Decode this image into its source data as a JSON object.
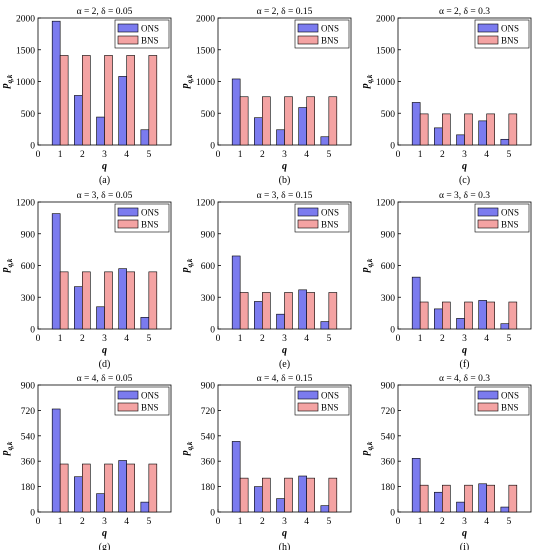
{
  "colors": {
    "ons": "#7b7bef",
    "bns": "#f4a3a3",
    "edge": "#000000"
  },
  "charts": [
    {
      "title": "α = 2, δ = 0.05",
      "ylabel": "p",
      "ylabel_sub": "q,k",
      "xlabel": "q",
      "caption": "(a)",
      "ylim": [
        0,
        2000
      ],
      "yticks": [
        "0",
        "500",
        "1000",
        "1500",
        "2000"
      ],
      "yticks_values": [
        0,
        500,
        1000,
        1500,
        2000
      ],
      "xlim": [
        0,
        6
      ],
      "xticks": [
        "0",
        "1",
        "2",
        "3",
        "4",
        "5"
      ],
      "legend": [
        "ONS",
        "BNS"
      ],
      "categories": [
        1,
        2,
        3,
        4,
        5
      ],
      "series": [
        {
          "name": "ONS",
          "values": [
            1950,
            780,
            440,
            1080,
            240
          ]
        },
        {
          "name": "BNS",
          "values": [
            1410,
            1410,
            1410,
            1410,
            1410
          ]
        }
      ]
    },
    {
      "title": "α = 2, δ = 0.15",
      "ylabel": "p",
      "ylabel_sub": "q,k",
      "xlabel": "q",
      "caption": "(b)",
      "ylim": [
        0,
        2000
      ],
      "yticks": [
        "0",
        "500",
        "1000",
        "1500",
        "2000"
      ],
      "yticks_values": [
        0,
        500,
        1000,
        1500,
        2000
      ],
      "xlim": [
        0,
        6
      ],
      "xticks": [
        "0",
        "1",
        "2",
        "3",
        "4",
        "5"
      ],
      "legend": [
        "ONS",
        "BNS"
      ],
      "categories": [
        1,
        2,
        3,
        4,
        5
      ],
      "series": [
        {
          "name": "ONS",
          "values": [
            1040,
            430,
            240,
            590,
            130
          ]
        },
        {
          "name": "BNS",
          "values": [
            760,
            760,
            760,
            760,
            760
          ]
        }
      ]
    },
    {
      "title": "α = 2, δ = 0.3",
      "ylabel": "p",
      "ylabel_sub": "q,k",
      "xlabel": "q",
      "caption": "(c)",
      "ylim": [
        0,
        2000
      ],
      "yticks": [
        "0",
        "500",
        "1000",
        "1500",
        "2000"
      ],
      "yticks_values": [
        0,
        500,
        1000,
        1500,
        2000
      ],
      "xlim": [
        0,
        6
      ],
      "xticks": [
        "0",
        "1",
        "2",
        "3",
        "4",
        "5"
      ],
      "legend": [
        "ONS",
        "BNS"
      ],
      "categories": [
        1,
        2,
        3,
        4,
        5
      ],
      "series": [
        {
          "name": "ONS",
          "values": [
            670,
            270,
            160,
            380,
            90
          ]
        },
        {
          "name": "BNS",
          "values": [
            490,
            490,
            490,
            490,
            490
          ]
        }
      ]
    },
    {
      "title": "α = 3, δ = 0.05",
      "ylabel": "p",
      "ylabel_sub": "q,k",
      "xlabel": "q",
      "caption": "(d)",
      "ylim": [
        0,
        1200
      ],
      "yticks": [
        "0",
        "300",
        "600",
        "900",
        "1200"
      ],
      "yticks_values": [
        0,
        300,
        600,
        900,
        1200
      ],
      "xlim": [
        0,
        6
      ],
      "xticks": [
        "0",
        "1",
        "2",
        "3",
        "4",
        "5"
      ],
      "legend": [
        "ONS",
        "BNS"
      ],
      "categories": [
        1,
        2,
        3,
        4,
        5
      ],
      "series": [
        {
          "name": "ONS",
          "values": [
            1090,
            400,
            210,
            570,
            110
          ]
        },
        {
          "name": "BNS",
          "values": [
            540,
            540,
            540,
            540,
            540
          ]
        }
      ]
    },
    {
      "title": "α = 3, δ = 0.15",
      "ylabel": "p",
      "ylabel_sub": "q,k",
      "xlabel": "q",
      "caption": "(e)",
      "ylim": [
        0,
        1200
      ],
      "yticks": [
        "0",
        "300",
        "600",
        "900",
        "1200"
      ],
      "yticks_values": [
        0,
        300,
        600,
        900,
        1200
      ],
      "xlim": [
        0,
        6
      ],
      "xticks": [
        "0",
        "1",
        "2",
        "3",
        "4",
        "5"
      ],
      "legend": [
        "ONS",
        "BNS"
      ],
      "categories": [
        1,
        2,
        3,
        4,
        5
      ],
      "series": [
        {
          "name": "ONS",
          "values": [
            690,
            260,
            140,
            370,
            70
          ]
        },
        {
          "name": "BNS",
          "values": [
            345,
            345,
            345,
            345,
            345
          ]
        }
      ]
    },
    {
      "title": "α = 3, δ = 0.3",
      "ylabel": "p",
      "ylabel_sub": "q,k",
      "xlabel": "q",
      "caption": "(f)",
      "ylim": [
        0,
        1200
      ],
      "yticks": [
        "0",
        "300",
        "600",
        "900",
        "1200"
      ],
      "yticks_values": [
        0,
        300,
        600,
        900,
        1200
      ],
      "xlim": [
        0,
        6
      ],
      "xticks": [
        "0",
        "1",
        "2",
        "3",
        "4",
        "5"
      ],
      "legend": [
        "ONS",
        "BNS"
      ],
      "categories": [
        1,
        2,
        3,
        4,
        5
      ],
      "series": [
        {
          "name": "ONS",
          "values": [
            490,
            190,
            100,
            270,
            50
          ]
        },
        {
          "name": "BNS",
          "values": [
            255,
            255,
            255,
            255,
            255
          ]
        }
      ]
    },
    {
      "title": "α = 4, δ = 0.05",
      "ylabel": "p",
      "ylabel_sub": "q,k",
      "xlabel": "q",
      "caption": "(g)",
      "ylim": [
        0,
        900
      ],
      "yticks": [
        "0",
        "180",
        "360",
        "540",
        "720",
        "900"
      ],
      "yticks_values": [
        0,
        180,
        360,
        540,
        720,
        900
      ],
      "xlim": [
        0,
        6
      ],
      "xticks": [
        "0",
        "1",
        "2",
        "3",
        "4",
        "5"
      ],
      "legend": [
        "ONS",
        "BNS"
      ],
      "categories": [
        1,
        2,
        3,
        4,
        5
      ],
      "series": [
        {
          "name": "ONS",
          "values": [
            730,
            250,
            130,
            365,
            70
          ]
        },
        {
          "name": "BNS",
          "values": [
            340,
            340,
            340,
            340,
            340
          ]
        }
      ]
    },
    {
      "title": "α = 4, δ = 0.15",
      "ylabel": "p",
      "ylabel_sub": "q,k",
      "xlabel": "q",
      "caption": "(h)",
      "ylim": [
        0,
        900
      ],
      "yticks": [
        "0",
        "180",
        "360",
        "540",
        "720",
        "900"
      ],
      "yticks_values": [
        0,
        180,
        360,
        540,
        720,
        900
      ],
      "xlim": [
        0,
        6
      ],
      "xticks": [
        "0",
        "1",
        "2",
        "3",
        "4",
        "5"
      ],
      "legend": [
        "ONS",
        "BNS"
      ],
      "categories": [
        1,
        2,
        3,
        4,
        5
      ],
      "series": [
        {
          "name": "ONS",
          "values": [
            500,
            180,
            95,
            255,
            45
          ]
        },
        {
          "name": "BNS",
          "values": [
            240,
            240,
            240,
            240,
            240
          ]
        }
      ]
    },
    {
      "title": "α = 4, δ = 0.3",
      "ylabel": "p",
      "ylabel_sub": "q,k",
      "xlabel": "q",
      "caption": "(i)",
      "ylim": [
        0,
        900
      ],
      "yticks": [
        "0",
        "180",
        "360",
        "540",
        "720",
        "900"
      ],
      "yticks_values": [
        0,
        180,
        360,
        540,
        720,
        900
      ],
      "xlim": [
        0,
        6
      ],
      "xticks": [
        "0",
        "1",
        "2",
        "3",
        "4",
        "5"
      ],
      "legend": [
        "ONS",
        "BNS"
      ],
      "categories": [
        1,
        2,
        3,
        4,
        5
      ],
      "series": [
        {
          "name": "ONS",
          "values": [
            380,
            140,
            70,
            200,
            35
          ]
        },
        {
          "name": "BNS",
          "values": [
            190,
            190,
            190,
            190,
            190
          ]
        }
      ]
    }
  ]
}
